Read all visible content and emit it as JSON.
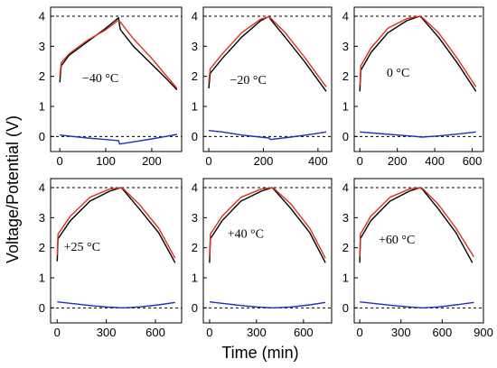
{
  "figure": {
    "x_axis_title": "Time (min)",
    "y_axis_title": "Voltage/Potential (V)"
  },
  "colors": {
    "series_black": "#000000",
    "series_red": "#e0301e",
    "series_blue": "#1f2fbf",
    "reference_line": "#000000"
  },
  "chart_data": [
    {
      "type": "line",
      "label": "−40 °C",
      "xlim": [
        -20,
        265
      ],
      "ylim": [
        -0.5,
        4.3
      ],
      "xticks": [
        0,
        100,
        200
      ],
      "yticks": [
        0,
        1,
        2,
        3,
        4
      ],
      "reference_lines_y": [
        4,
        0
      ],
      "series": [
        {
          "color_key": "series_black",
          "x": [
            0,
            3,
            20,
            60,
            100,
            128,
            130,
            132,
            160,
            200,
            230,
            255
          ],
          "y": [
            1.8,
            2.35,
            2.7,
            3.15,
            3.6,
            3.95,
            3.7,
            3.55,
            3.0,
            2.4,
            1.95,
            1.55
          ]
        },
        {
          "color_key": "series_red",
          "x": [
            0,
            3,
            20,
            60,
            100,
            126,
            128,
            132,
            160,
            200,
            230,
            255
          ],
          "y": [
            2.0,
            2.45,
            2.75,
            3.2,
            3.55,
            3.85,
            3.85,
            3.8,
            3.25,
            2.6,
            2.05,
            1.6
          ]
        },
        {
          "color_key": "series_blue",
          "x": [
            0,
            10,
            60,
            100,
            128,
            130,
            160,
            200,
            230,
            255
          ],
          "y": [
            0.05,
            0.03,
            -0.05,
            -0.1,
            -0.14,
            -0.25,
            -0.18,
            -0.08,
            0.0,
            0.07
          ]
        }
      ]
    },
    {
      "type": "line",
      "label": "−20 °C",
      "xlim": [
        -20,
        450
      ],
      "ylim": [
        -0.5,
        4.3
      ],
      "xticks": [
        0,
        200,
        400
      ],
      "yticks": [
        0,
        1,
        2,
        3,
        4
      ],
      "reference_lines_y": [
        4,
        0
      ],
      "series": [
        {
          "color_key": "series_black",
          "x": [
            0,
            5,
            50,
            120,
            190,
            222,
            226,
            280,
            350,
            430
          ],
          "y": [
            1.6,
            2.1,
            2.6,
            3.3,
            3.85,
            4.0,
            3.9,
            3.3,
            2.5,
            1.5
          ]
        },
        {
          "color_key": "series_red",
          "x": [
            0,
            5,
            50,
            120,
            190,
            220,
            226,
            280,
            350,
            430
          ],
          "y": [
            1.8,
            2.25,
            2.75,
            3.45,
            3.9,
            3.98,
            3.95,
            3.45,
            2.65,
            1.65
          ]
        },
        {
          "color_key": "series_blue",
          "x": [
            0,
            50,
            120,
            190,
            222,
            226,
            300,
            380,
            430
          ],
          "y": [
            0.2,
            0.15,
            0.05,
            -0.02,
            -0.05,
            -0.1,
            -0.02,
            0.08,
            0.15
          ]
        }
      ]
    },
    {
      "type": "line",
      "label": "0 °C",
      "xlim": [
        -30,
        660
      ],
      "ylim": [
        -0.5,
        4.3
      ],
      "xticks": [
        0,
        200,
        400,
        600
      ],
      "yticks": [
        0,
        1,
        2,
        3,
        4
      ],
      "reference_lines_y": [
        4,
        0
      ],
      "series": [
        {
          "color_key": "series_black",
          "x": [
            0,
            5,
            60,
            150,
            250,
            320,
            330,
            420,
            520,
            620
          ],
          "y": [
            1.5,
            2.2,
            2.8,
            3.45,
            3.85,
            4.0,
            3.95,
            3.3,
            2.45,
            1.5
          ]
        },
        {
          "color_key": "series_red",
          "x": [
            0,
            5,
            60,
            150,
            250,
            318,
            330,
            420,
            520,
            620
          ],
          "y": [
            1.7,
            2.35,
            2.95,
            3.6,
            3.92,
            4.0,
            3.98,
            3.45,
            2.6,
            1.65
          ]
        },
        {
          "color_key": "series_blue",
          "x": [
            0,
            100,
            200,
            300,
            330,
            420,
            520,
            620
          ],
          "y": [
            0.15,
            0.1,
            0.05,
            0.0,
            -0.02,
            0.02,
            0.08,
            0.15
          ]
        }
      ]
    },
    {
      "type": "line",
      "label": "+25 °C",
      "xlim": [
        -40,
        760
      ],
      "ylim": [
        -0.5,
        4.3
      ],
      "xticks": [
        0,
        300,
        600
      ],
      "yticks": [
        0,
        1,
        2,
        3,
        4
      ],
      "reference_lines_y": [
        4,
        0
      ],
      "series": [
        {
          "color_key": "series_black",
          "x": [
            0,
            5,
            80,
            200,
            320,
            390,
            400,
            500,
            620,
            720
          ],
          "y": [
            1.55,
            2.3,
            2.9,
            3.55,
            3.88,
            4.0,
            3.95,
            3.3,
            2.5,
            1.5
          ]
        },
        {
          "color_key": "series_red",
          "x": [
            0,
            5,
            80,
            200,
            320,
            388,
            400,
            500,
            620,
            720
          ],
          "y": [
            1.75,
            2.45,
            3.05,
            3.68,
            3.95,
            4.0,
            3.98,
            3.45,
            2.65,
            1.65
          ]
        },
        {
          "color_key": "series_blue",
          "x": [
            0,
            100,
            200,
            300,
            400,
            500,
            620,
            720
          ],
          "y": [
            0.2,
            0.14,
            0.08,
            0.03,
            0.0,
            0.03,
            0.1,
            0.18
          ]
        }
      ]
    },
    {
      "type": "line",
      "label": "+40 °C",
      "xlim": [
        -40,
        780
      ],
      "ylim": [
        -0.5,
        4.3
      ],
      "xticks": [
        0,
        300,
        600
      ],
      "yticks": [
        0,
        1,
        2,
        3,
        4
      ],
      "reference_lines_y": [
        4,
        0
      ],
      "series": [
        {
          "color_key": "series_black",
          "x": [
            0,
            5,
            80,
            200,
            330,
            400,
            410,
            520,
            640,
            740
          ],
          "y": [
            1.5,
            2.3,
            2.9,
            3.55,
            3.88,
            4.0,
            3.95,
            3.3,
            2.5,
            1.5
          ]
        },
        {
          "color_key": "series_red",
          "x": [
            0,
            5,
            80,
            200,
            330,
            398,
            410,
            520,
            640,
            740
          ],
          "y": [
            1.7,
            2.45,
            3.05,
            3.68,
            3.95,
            4.0,
            3.98,
            3.45,
            2.65,
            1.65
          ]
        },
        {
          "color_key": "series_blue",
          "x": [
            0,
            100,
            200,
            300,
            410,
            520,
            640,
            740
          ],
          "y": [
            0.2,
            0.14,
            0.08,
            0.03,
            0.0,
            0.03,
            0.1,
            0.18
          ]
        }
      ]
    },
    {
      "type": "line",
      "label": "+60 °C",
      "xlim": [
        -40,
        900
      ],
      "ylim": [
        -0.5,
        4.3
      ],
      "xticks": [
        0,
        300,
        600,
        900
      ],
      "yticks": [
        0,
        1,
        2,
        3,
        4
      ],
      "reference_lines_y": [
        4,
        0
      ],
      "series": [
        {
          "color_key": "series_black",
          "x": [
            0,
            5,
            80,
            220,
            360,
            440,
            455,
            570,
            700,
            820
          ],
          "y": [
            1.5,
            2.3,
            2.9,
            3.55,
            3.88,
            4.0,
            3.95,
            3.3,
            2.5,
            1.5
          ]
        },
        {
          "color_key": "series_red",
          "x": [
            0,
            5,
            80,
            220,
            360,
            438,
            455,
            570,
            700,
            830
          ],
          "y": [
            1.7,
            2.45,
            3.05,
            3.68,
            3.95,
            4.0,
            3.98,
            3.45,
            2.65,
            1.7
          ]
        },
        {
          "color_key": "series_blue",
          "x": [
            0,
            120,
            240,
            360,
            455,
            570,
            700,
            830
          ],
          "y": [
            0.2,
            0.14,
            0.08,
            0.03,
            0.0,
            0.03,
            0.1,
            0.18
          ]
        }
      ]
    }
  ]
}
